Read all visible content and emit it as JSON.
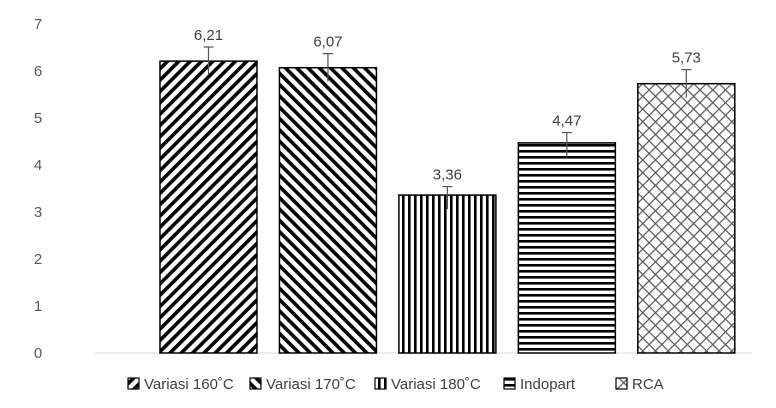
{
  "chart_data": {
    "type": "bar",
    "title": "",
    "xlabel": "",
    "ylabel": "",
    "ylim": [
      0,
      7
    ],
    "yticks": [
      0,
      1,
      2,
      3,
      4,
      5,
      6,
      7
    ],
    "grid": false,
    "legend_position": "bottom",
    "categories": [
      "Variasi 160˚C",
      "Variasi 170˚C",
      "Variasi 180˚C",
      "Indopart",
      "RCA"
    ],
    "values": [
      6.21,
      6.07,
      3.36,
      4.47,
      5.73
    ],
    "value_labels": [
      "6,21",
      "6,07",
      "3,36",
      "4,47",
      "5,73"
    ],
    "error": [
      0.3,
      0.3,
      0.18,
      0.22,
      0.3
    ],
    "patterns": [
      "diagonal-up",
      "diagonal-down",
      "vertical",
      "horizontal",
      "crosshatch"
    ],
    "colors": {
      "bar_fill": "#ffffff",
      "bar_stroke": "#000000",
      "pattern_thick": "#000000",
      "pattern_thin": "#555555",
      "text": "#595959",
      "axis": "#d9d9d9"
    }
  }
}
